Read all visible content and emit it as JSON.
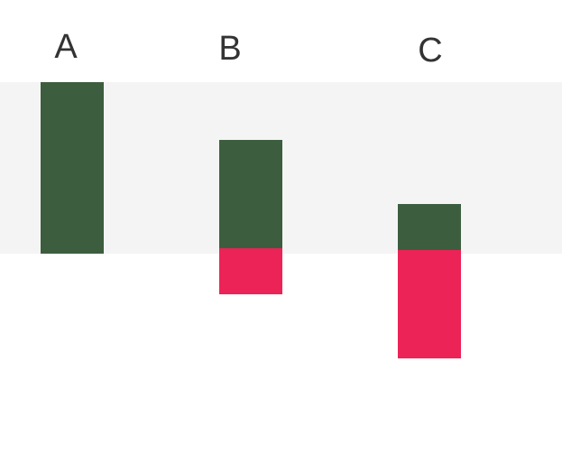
{
  "colors": {
    "band": "#f4f4f4",
    "positive": "#3c5e3f",
    "negative": "#ec2357",
    "label": "#333333"
  },
  "columns": [
    {
      "label": "A"
    },
    {
      "label": "B"
    },
    {
      "label": "C"
    }
  ]
}
